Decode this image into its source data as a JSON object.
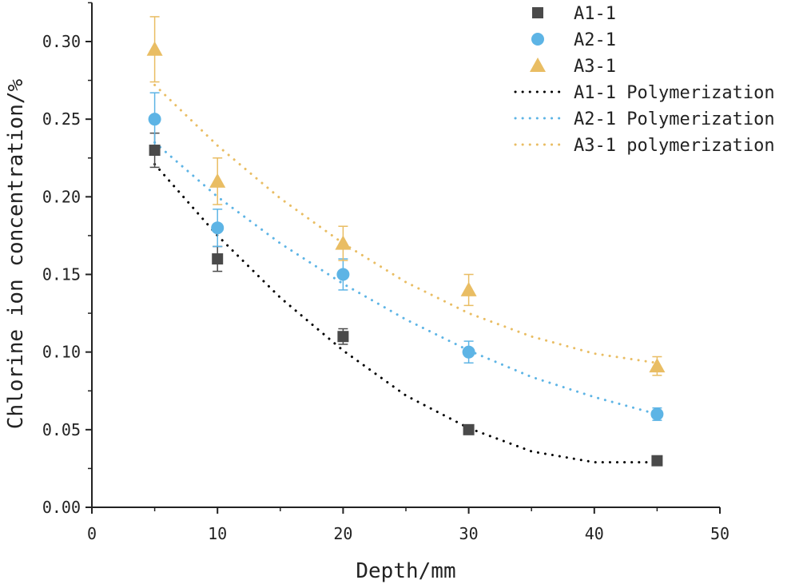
{
  "chart_data": {
    "type": "scatter",
    "xlabel": "Depth/mm",
    "ylabel": "Chlorine ion concentration/%",
    "xlim": [
      0,
      50
    ],
    "ylim": [
      0,
      0.325
    ],
    "x_ticks": [
      "0",
      "10",
      "20",
      "30",
      "40",
      "50"
    ],
    "y_ticks": [
      "0.00",
      "0.05",
      "0.10",
      "0.15",
      "0.20",
      "0.25",
      "0.30"
    ],
    "grid": false,
    "legend_position": "top-right",
    "series": [
      {
        "name": "A1-1",
        "marker": "square",
        "color": "#4a4a4a",
        "x": [
          5,
          10,
          20,
          30,
          45
        ],
        "y": [
          0.23,
          0.16,
          0.11,
          0.05,
          0.03
        ],
        "error": [
          0.011,
          0.008,
          0.005,
          0.0,
          0.0
        ]
      },
      {
        "name": "A2-1",
        "marker": "circle",
        "color": "#5db4e5",
        "x": [
          5,
          10,
          20,
          30,
          45
        ],
        "y": [
          0.25,
          0.18,
          0.15,
          0.1,
          0.06
        ],
        "error": [
          0.017,
          0.012,
          0.01,
          0.007,
          0.004
        ]
      },
      {
        "name": "A3-1",
        "marker": "triangle",
        "color": "#e9bd63",
        "x": [
          5,
          10,
          20,
          30,
          45
        ],
        "y": [
          0.295,
          0.21,
          0.17,
          0.14,
          0.091
        ],
        "error": [
          0.021,
          0.015,
          0.011,
          0.01,
          0.006
        ]
      }
    ],
    "fits": [
      {
        "name": "A1-1 Polymerization",
        "color": "#000000",
        "x": [
          5,
          10,
          15,
          20,
          25,
          30,
          35,
          40,
          45
        ],
        "y": [
          0.221,
          0.175,
          0.135,
          0.101,
          0.072,
          0.051,
          0.036,
          0.029,
          0.029
        ]
      },
      {
        "name": "A2-1 Polymerization",
        "color": "#5db4e5",
        "x": [
          5,
          10,
          15,
          20,
          25,
          30,
          35,
          40,
          45
        ],
        "y": [
          0.235,
          0.2,
          0.17,
          0.144,
          0.121,
          0.101,
          0.084,
          0.071,
          0.06
        ]
      },
      {
        "name": "A3-1 polymerization",
        "color": "#e9bd63",
        "x": [
          5,
          10,
          15,
          20,
          25,
          30,
          35,
          40,
          45
        ],
        "y": [
          0.272,
          0.233,
          0.199,
          0.17,
          0.145,
          0.125,
          0.11,
          0.099,
          0.093
        ]
      }
    ]
  }
}
